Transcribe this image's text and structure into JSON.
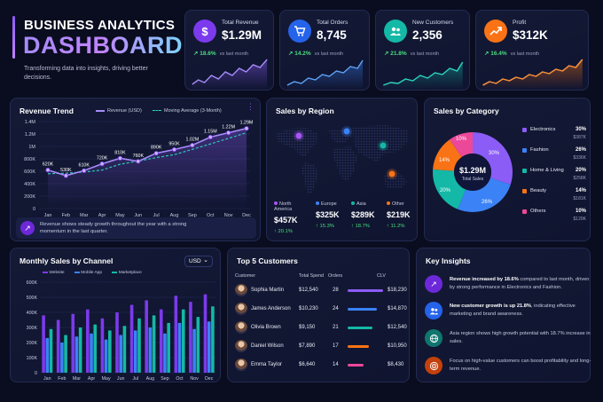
{
  "header": {
    "title": "BUSINESS ANALYTICS",
    "big": "DASHBOARD",
    "subtitle": "Transforming data into insights, driving better decisions."
  },
  "kpis": [
    {
      "label": "Total Revenue",
      "value": "$1.29M",
      "change": "↗ 18.6%",
      "vs": "vs last month",
      "icon": "dollar-icon",
      "color": "#7c3aed"
    },
    {
      "label": "Total Orders",
      "value": "8,745",
      "change": "↗ 14.2%",
      "vs": "vs last month",
      "icon": "cart-icon",
      "color": "#2563eb"
    },
    {
      "label": "New Customers",
      "value": "2,356",
      "change": "↗ 21.8%",
      "vs": "vs last month",
      "icon": "users-icon",
      "color": "#14b8a6"
    },
    {
      "label": "Profit",
      "value": "$312K",
      "change": "↗ 16.4%",
      "vs": "vs last month",
      "icon": "chart-up-icon",
      "color": "#f97316"
    }
  ],
  "revenue_trend": {
    "title": "Revenue Trend",
    "legend_revenue": "Revenue (USD)",
    "legend_ma": "Moving Average (3-Month)",
    "note": "Revenue shows steady growth throughout the year with a strong momentum in the last quarter."
  },
  "sales_region": {
    "title": "Sales by Region",
    "regions": [
      {
        "name": "North America",
        "value": "$457K",
        "change": "↑ 20.1%",
        "color": "#a855f7"
      },
      {
        "name": "Europe",
        "value": "$325K",
        "change": "↑ 15.3%",
        "color": "#3b82f6"
      },
      {
        "name": "Asia",
        "value": "$289K",
        "change": "↑ 18.7%",
        "color": "#14b8a6"
      },
      {
        "name": "Other",
        "value": "$219K",
        "change": "↑ 11.2%",
        "color": "#f97316"
      }
    ]
  },
  "sales_category": {
    "title": "Sales by Category",
    "center_value": "$1.29M",
    "center_label": "Total Sales",
    "items": [
      {
        "name": "Electronics",
        "pct": "30%",
        "amount": "$387K",
        "color": "#8b5cf6"
      },
      {
        "name": "Fashion",
        "pct": "26%",
        "amount": "$336K",
        "color": "#3b82f6"
      },
      {
        "name": "Home & Living",
        "pct": "20%",
        "amount": "$258K",
        "color": "#14b8a6"
      },
      {
        "name": "Beauty",
        "pct": "14%",
        "amount": "$181K",
        "color": "#f97316"
      },
      {
        "name": "Others",
        "pct": "10%",
        "amount": "$129K",
        "color": "#ec4899"
      }
    ]
  },
  "monthly_channel": {
    "title": "Monthly Sales by Channel",
    "currency": "USD",
    "currency_caret": "⌄",
    "legend": [
      "Website",
      "Mobile App",
      "Marketplace"
    ]
  },
  "top_customers": {
    "title": "Top 5 Customers",
    "headers": [
      "Customer",
      "Total Spend",
      "Orders",
      "CLV"
    ],
    "rows": [
      {
        "name": "Sophia Martin",
        "spend": "$12,540",
        "orders": "28",
        "clv": "$18,230",
        "clv_share": 1.0,
        "color": "#8b5cf6"
      },
      {
        "name": "James Anderson",
        "spend": "$10,230",
        "orders": "24",
        "clv": "$14,870",
        "clv_share": 0.82,
        "color": "#3b82f6"
      },
      {
        "name": "Olivia Brown",
        "spend": "$9,150",
        "orders": "21",
        "clv": "$12,540",
        "clv_share": 0.69,
        "color": "#14b8a6"
      },
      {
        "name": "Daniel Wilson",
        "spend": "$7,890",
        "orders": "17",
        "clv": "$10,950",
        "clv_share": 0.6,
        "color": "#f97316"
      },
      {
        "name": "Emma Taylor",
        "spend": "$6,640",
        "orders": "14",
        "clv": "$8,430",
        "clv_share": 0.46,
        "color": "#ec4899"
      }
    ]
  },
  "insights": {
    "title": "Key Insights",
    "items": [
      {
        "bold": "Revenue increased by 18.6%",
        "text": " compared to last month, driven by strong performance in Electronics and Fashion.",
        "icon": "chart-icon",
        "color": "#6d28d9"
      },
      {
        "bold": "New customer growth is up 21.8%",
        "text": ", indicating effective marketing and brand awareness.",
        "icon": "users-icon",
        "color": "#2563eb"
      },
      {
        "bold": "",
        "text": "Asia region shows high growth potential with 18.7% increase in sales.",
        "icon": "globe-icon",
        "color": "#0f766e"
      },
      {
        "bold": "",
        "text": "Focus on high-value customers can boost profitability and long-term revenue.",
        "icon": "target-icon",
        "color": "#c2410c"
      }
    ]
  },
  "chart_data": [
    {
      "type": "line",
      "title": "Revenue Trend",
      "x": [
        "Jan",
        "Feb",
        "Mar",
        "Apr",
        "May",
        "Jun",
        "Jul",
        "Aug",
        "Sep",
        "Oct",
        "Nov",
        "Dec"
      ],
      "series": [
        {
          "name": "Revenue (USD)",
          "values": [
            620,
            530,
            610,
            720,
            810,
            760,
            890,
            950,
            1020,
            1150,
            1220,
            1290
          ],
          "labels": [
            "620K",
            "530K",
            "610K",
            "720K",
            "810K",
            "760K",
            "890K",
            "950K",
            "1.02M",
            "1.15M",
            "1.22M",
            "1.29M"
          ]
        },
        {
          "name": "Moving Average (3-Month)",
          "values": [
            560,
            570,
            587,
            620,
            713,
            763,
            820,
            867,
            953,
            1040,
            1130,
            1220
          ]
        }
      ],
      "yticks": [
        "0",
        "200K",
        "400K",
        "600K",
        "800K",
        "1M",
        "1.2M",
        "1.4M"
      ],
      "ylim": [
        0,
        1400
      ]
    },
    {
      "type": "bar",
      "title": "Monthly Sales by Channel",
      "categories": [
        "Jan",
        "Feb",
        "Mar",
        "Apr",
        "May",
        "Jun",
        "Jul",
        "Aug",
        "Sep",
        "Oct",
        "Nov",
        "Dec"
      ],
      "series": [
        {
          "name": "Website",
          "values": [
            380,
            350,
            390,
            420,
            360,
            400,
            450,
            480,
            420,
            510,
            470,
            520
          ],
          "color": "#7c3aed"
        },
        {
          "name": "Mobile App",
          "values": [
            230,
            200,
            240,
            260,
            220,
            250,
            280,
            300,
            260,
            330,
            290,
            340
          ],
          "color": "#3b82f6"
        },
        {
          "name": "Marketplace",
          "values": [
            290,
            250,
            300,
            320,
            280,
            310,
            360,
            380,
            330,
            420,
            370,
            440
          ],
          "color": "#14b8a6"
        }
      ],
      "yticks": [
        "0",
        "100K",
        "200K",
        "300K",
        "400K",
        "500K",
        "600K"
      ],
      "ylim": [
        0,
        600
      ]
    }
  ]
}
